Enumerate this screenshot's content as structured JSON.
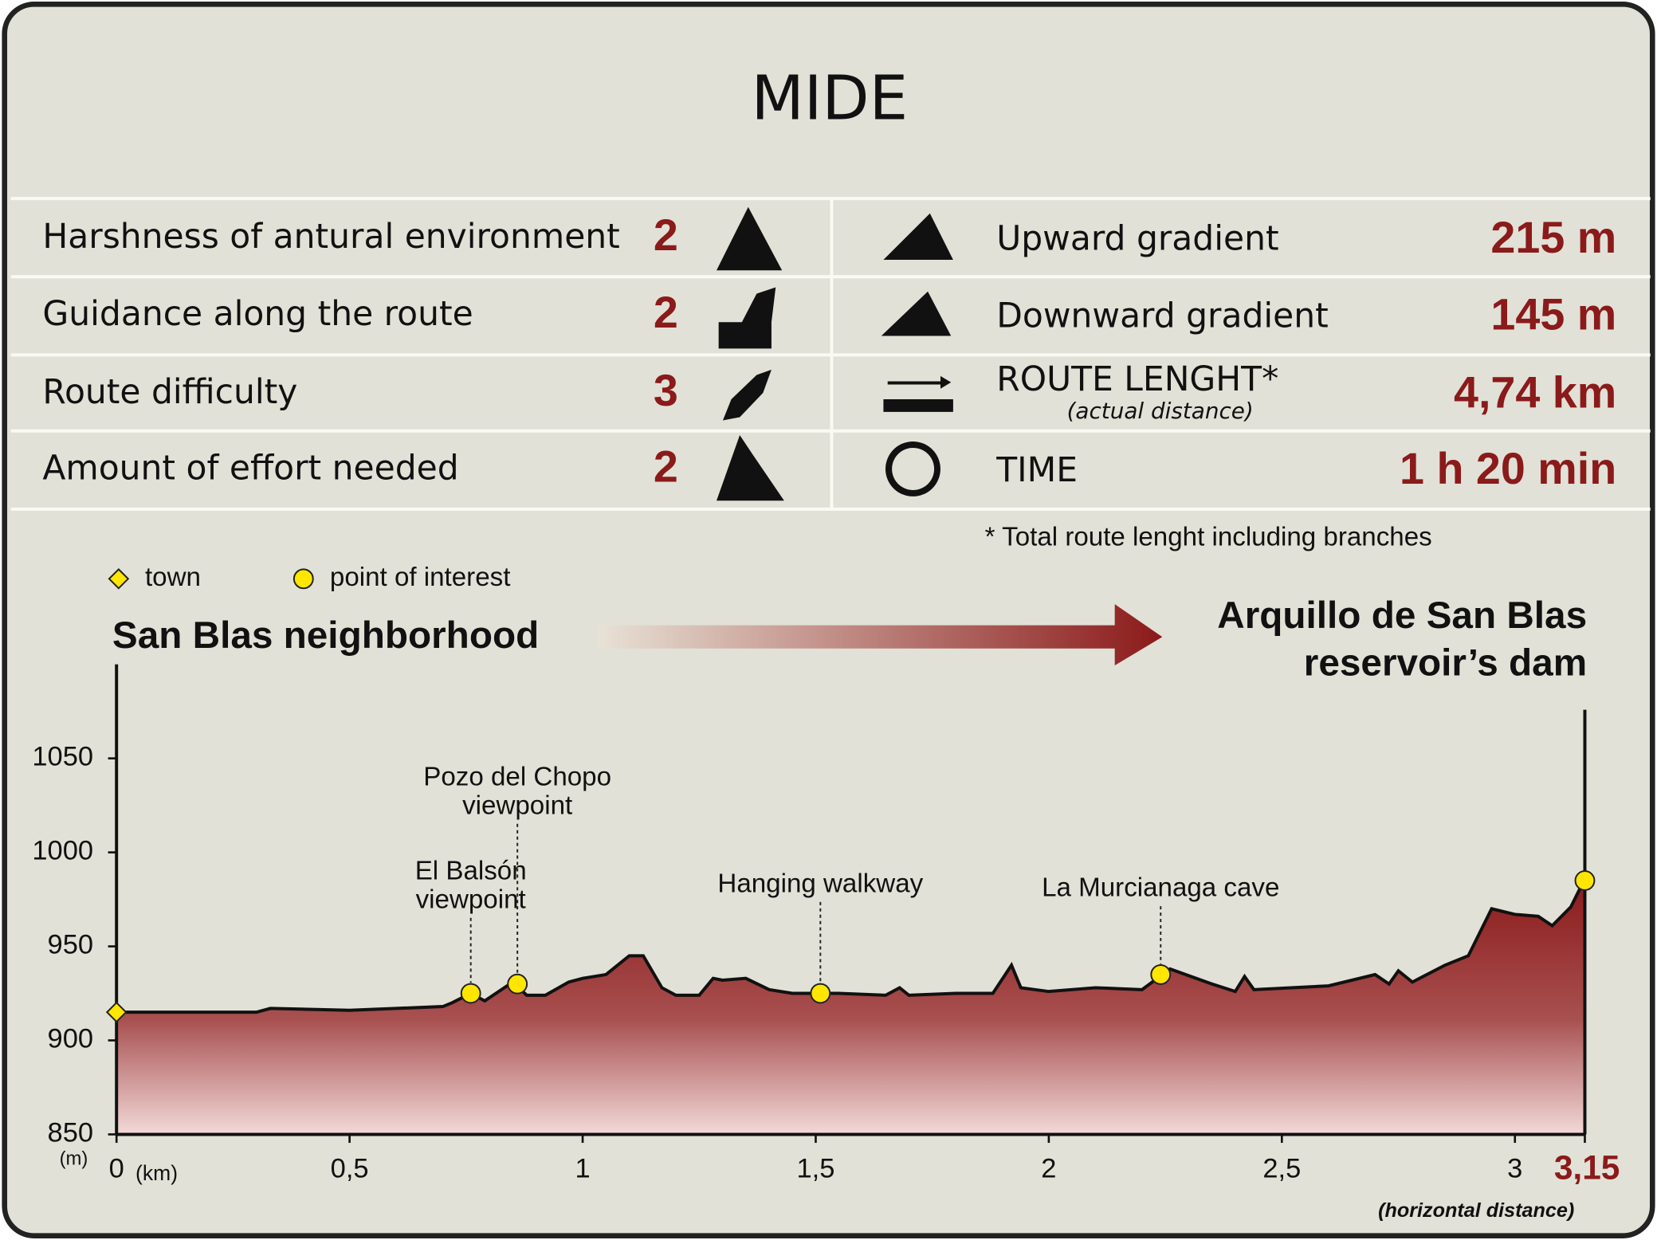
{
  "title": "MIDE",
  "mide": [
    {
      "label": "Harshness of antural environment",
      "value": 2
    },
    {
      "label": "Guidance along the route",
      "value": 2
    },
    {
      "label": "Route difficulty",
      "value": 3
    },
    {
      "label": "Amount of effort needed",
      "value": 2
    }
  ],
  "stats": [
    {
      "label": "Upward gradient",
      "value": "215 m"
    },
    {
      "label": "Downward gradient",
      "value": "145 m"
    },
    {
      "label": "ROUTE LENGHT*",
      "note": "(actual distance)",
      "value": "4,74 km"
    },
    {
      "label": "TIME",
      "value": "1 h 20 min"
    }
  ],
  "footnote": "* Total route lenght including branches",
  "chart_data": {
    "type": "area",
    "legend": [
      {
        "name": "town",
        "marker": "diamond",
        "color": "#ffe600"
      },
      {
        "name": "point of interest",
        "marker": "circle",
        "color": "#ffe600"
      }
    ],
    "start_label": "San Blas neighborhood",
    "end_label": [
      "Arquillo de San Blas",
      "reservoir’s dam"
    ],
    "x_unit": "(km)",
    "y_unit": "(m)",
    "x_note": "(horizontal distance)",
    "color": "#8b1a1a",
    "x": [
      0,
      0.1,
      0.25,
      0.3,
      0.33,
      0.5,
      0.6,
      0.7,
      0.72,
      0.76,
      0.79,
      0.85,
      0.88,
      0.92,
      0.97,
      1.0,
      1.05,
      1.1,
      1.13,
      1.17,
      1.2,
      1.25,
      1.28,
      1.3,
      1.35,
      1.4,
      1.45,
      1.5,
      1.55,
      1.65,
      1.68,
      1.7,
      1.8,
      1.88,
      1.92,
      1.94,
      2.0,
      2.1,
      2.2,
      2.26,
      2.35,
      2.4,
      2.42,
      2.44,
      2.6,
      2.7,
      2.73,
      2.75,
      2.78,
      2.85,
      2.9,
      2.95,
      3.0,
      3.05,
      3.08,
      3.12,
      3.15
    ],
    "values": [
      915,
      915,
      915,
      915,
      917,
      916,
      917,
      918,
      920,
      925,
      921,
      931,
      924,
      924,
      931,
      933,
      935,
      945,
      945,
      928,
      924,
      924,
      933,
      932,
      933,
      927,
      925,
      925,
      925,
      924,
      928,
      924,
      925,
      925,
      940,
      928,
      926,
      928,
      927,
      938,
      930,
      926,
      934,
      927,
      929,
      935,
      930,
      937,
      931,
      940,
      945,
      970,
      967,
      966,
      961,
      971,
      986
    ],
    "points": [
      {
        "label": [],
        "marker": "diamond",
        "x": 0,
        "y": 915
      },
      {
        "label": [
          "El Balsón",
          "viewpoint"
        ],
        "marker": "circle",
        "x": 0.76,
        "y": 925
      },
      {
        "label": [
          "Pozo del Chopo",
          "viewpoint"
        ],
        "marker": "circle",
        "x": 0.86,
        "y": 930
      },
      {
        "label": [
          "Hanging walkway"
        ],
        "marker": "circle",
        "x": 1.51,
        "y": 925
      },
      {
        "label": [
          "La Murcianaga cave"
        ],
        "marker": "circle",
        "x": 2.24,
        "y": 935
      },
      {
        "label": [],
        "marker": "circle",
        "x": 3.15,
        "y": 985
      }
    ],
    "xlim": [
      0,
      3.15
    ],
    "ylim": [
      850,
      1100
    ],
    "xticks": [
      0,
      {
        "value": 0.5,
        "label": "0,5"
      },
      1,
      {
        "value": 1.5,
        "label": "1,5"
      },
      2,
      {
        "value": 2.5,
        "label": "2,5"
      },
      3,
      {
        "value": 3.15,
        "label": "3,15"
      }
    ],
    "yticks": [
      850,
      900,
      950,
      1000,
      1050
    ]
  }
}
